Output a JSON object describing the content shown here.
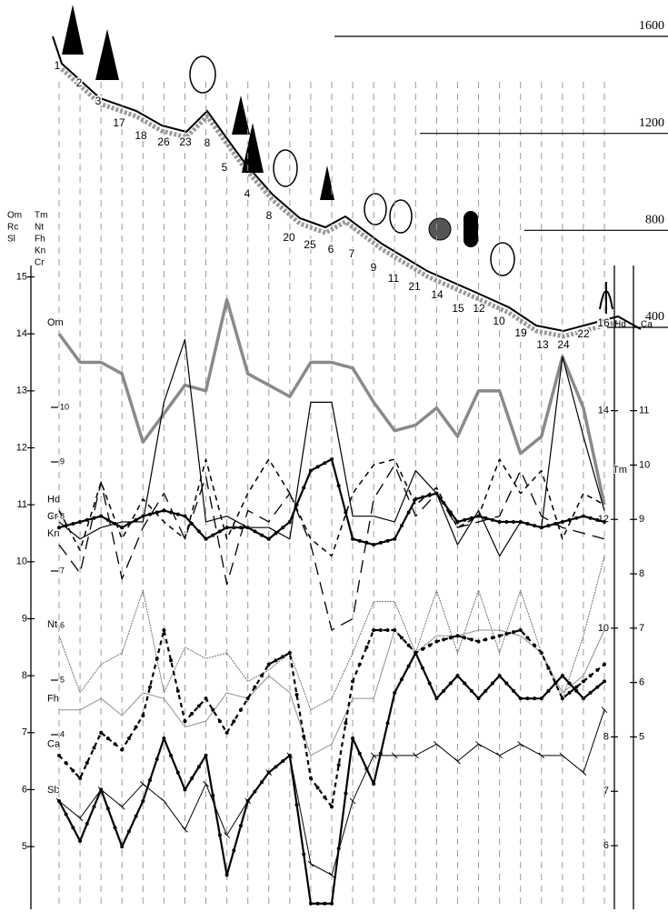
{
  "chart_data": {
    "type": "line",
    "categories": [
      "1",
      "2",
      "3",
      "17",
      "18",
      "26",
      "23",
      "8",
      "5",
      "4",
      "8",
      "20",
      "25",
      "6",
      "7",
      "9",
      "11",
      "21",
      "14",
      "15",
      "12",
      "10",
      "19",
      "13",
      "24",
      "22",
      "16"
    ],
    "elevation_ticks": [
      1600,
      1200,
      800,
      400
    ],
    "axes": [
      {
        "titles": [
          "Om",
          "Rc",
          "Sl"
        ],
        "lim": [
          3.9,
          15.2
        ],
        "ticks": [
          5,
          6,
          7,
          8,
          9,
          10,
          11,
          12,
          13,
          14,
          15
        ]
      },
      {
        "titles": [
          "Tm",
          "Nt",
          "Fh",
          "Kn",
          "Cr"
        ],
        "lim": [
          0.8,
          12.6
        ],
        "ticks": [
          4,
          5,
          6,
          7,
          8,
          9,
          10
        ]
      },
      {
        "titles": [
          "Hd"
        ],
        "lim": [
          4.83,
          16.67
        ],
        "ticks": [
          6,
          7,
          8,
          10,
          12,
          14
        ]
      },
      {
        "titles": [
          "Ca"
        ],
        "lim": [
          1.83,
          13.67
        ],
        "ticks": [
          5,
          6,
          7,
          8,
          9,
          10,
          11
        ]
      }
    ],
    "series": [
      {
        "name": "Om",
        "color": "#8a8a8a",
        "width": 3.5,
        "dash": "none",
        "markers": "none",
        "values": [
          14.0,
          13.5,
          13.5,
          13.3,
          12.1,
          12.6,
          13.1,
          13.0,
          14.6,
          13.3,
          13.1,
          12.9,
          13.5,
          13.5,
          13.4,
          12.8,
          12.3,
          12.4,
          12.7,
          12.2,
          13.0,
          13.0,
          11.9,
          12.2,
          13.6,
          12.7,
          11.0
        ]
      },
      {
        "name": "Tm",
        "color": "#000000",
        "width": 1.2,
        "dash": "none",
        "markers": "none",
        "values": [
          10.7,
          10.4,
          10.6,
          10.7,
          10.7,
          12.8,
          13.9,
          10.7,
          10.8,
          10.6,
          10.6,
          10.4,
          12.8,
          12.8,
          10.8,
          10.8,
          10.7,
          11.6,
          11.2,
          10.3,
          10.9,
          10.1,
          10.7,
          10.6,
          13.6,
          12.2,
          10.9
        ]
      },
      {
        "name": "Hd",
        "color": "#000000",
        "width": 1.5,
        "dash": "6 5",
        "markers": "none",
        "values": [
          10.9,
          10.2,
          11.4,
          10.4,
          11.1,
          10.7,
          10.4,
          11.8,
          10.4,
          11.2,
          11.8,
          11.2,
          10.4,
          10.1,
          11.2,
          11.7,
          11.8,
          11.0,
          11.3,
          10.6,
          10.8,
          11.8,
          11.2,
          11.6,
          10.4,
          11.2,
          11.0
        ]
      },
      {
        "name": "Cr",
        "color": "#000000",
        "width": 2.2,
        "dash": "none",
        "markers": "dot",
        "values": [
          10.6,
          10.7,
          10.8,
          10.6,
          10.8,
          10.9,
          10.8,
          10.4,
          10.6,
          10.6,
          10.4,
          10.7,
          11.6,
          11.8,
          10.4,
          10.3,
          10.4,
          11.1,
          11.2,
          10.7,
          10.8,
          10.7,
          10.7,
          10.6,
          10.7,
          10.8,
          10.7
        ]
      },
      {
        "name": "Kn",
        "color": "#000000",
        "width": 1.3,
        "dash": "14 8",
        "markers": "none",
        "values": [
          10.3,
          9.8,
          11.4,
          9.7,
          10.6,
          11.2,
          10.4,
          11.5,
          9.6,
          10.9,
          10.7,
          11.2,
          10.3,
          8.8,
          9.0,
          11.1,
          11.7,
          10.8,
          11.2,
          10.6,
          10.7,
          10.8,
          11.6,
          10.8,
          10.6,
          10.5,
          10.4
        ]
      },
      {
        "name": "Nt",
        "color": "#6f6f6f",
        "width": 1.0,
        "dash": "2 1",
        "markers": "none",
        "values": [
          8.7,
          7.7,
          8.2,
          8.4,
          9.5,
          7.7,
          8.5,
          8.3,
          8.4,
          7.9,
          8.1,
          8.4,
          7.4,
          7.6,
          8.4,
          9.3,
          9.3,
          8.4,
          9.5,
          8.4,
          9.5,
          8.4,
          9.5,
          8.4,
          7.6,
          8.7,
          10.1
        ]
      },
      {
        "name": "Fh",
        "color": "#8f8f8f",
        "width": 1.0,
        "dash": "none",
        "markers": "none",
        "values": [
          7.4,
          7.4,
          7.6,
          7.3,
          7.7,
          7.6,
          7.1,
          7.2,
          7.7,
          7.6,
          8.0,
          7.7,
          6.6,
          6.8,
          7.6,
          7.6,
          8.8,
          8.4,
          8.7,
          8.7,
          8.8,
          8.8,
          8.7,
          8.4,
          7.7,
          8.0,
          8.8
        ]
      },
      {
        "name": "Ca",
        "color": "#000000",
        "width": 2.2,
        "dash": "5 4",
        "markers": "dot",
        "values": [
          6.6,
          6.2,
          7.0,
          6.7,
          7.3,
          8.8,
          7.2,
          7.6,
          7.0,
          7.6,
          8.2,
          8.4,
          6.2,
          5.7,
          7.9,
          8.8,
          8.8,
          8.4,
          8.6,
          8.7,
          8.6,
          8.7,
          8.8,
          8.4,
          7.6,
          7.9,
          8.2
        ]
      },
      {
        "name": "Rc",
        "color": "#000000",
        "width": 1.0,
        "dash": "none",
        "markers": "tick",
        "values": [
          5.8,
          5.5,
          6.0,
          5.7,
          6.1,
          5.8,
          5.3,
          6.1,
          5.2,
          5.8,
          6.3,
          6.6,
          4.7,
          4.5,
          5.8,
          6.6,
          6.6,
          6.6,
          6.8,
          6.5,
          6.8,
          6.6,
          6.8,
          6.6,
          6.6,
          6.3,
          7.4
        ]
      },
      {
        "name": "Sl",
        "color": "#000000",
        "width": 2.2,
        "dash": "none",
        "markers": "dot",
        "values": [
          5.8,
          5.1,
          6.0,
          5.0,
          5.8,
          6.9,
          6.0,
          6.6,
          4.5,
          5.8,
          6.3,
          6.6,
          4.0,
          4.0,
          6.9,
          6.1,
          7.7,
          8.4,
          7.6,
          8.0,
          7.6,
          8.0,
          7.6,
          7.6,
          8.0,
          7.6,
          7.9
        ]
      }
    ]
  }
}
